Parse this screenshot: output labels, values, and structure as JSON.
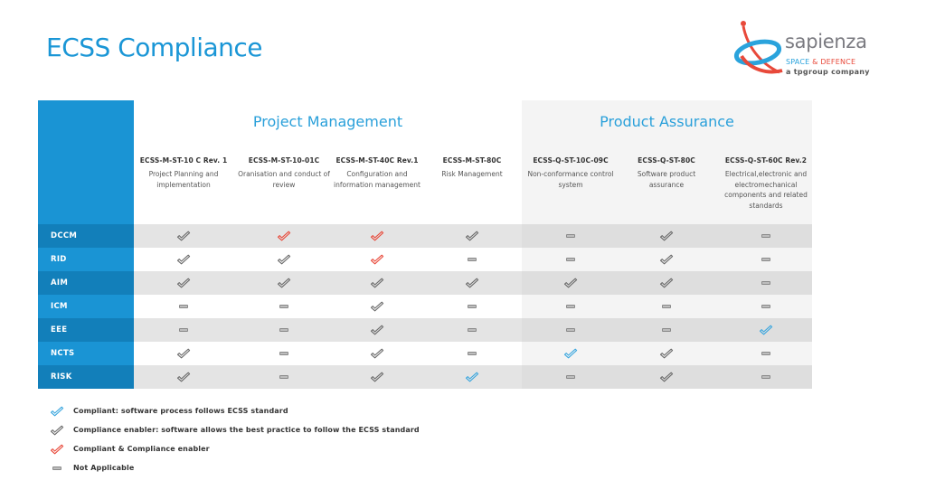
{
  "title": "ECSS Compliance",
  "logo": {
    "name": "sapienza",
    "sub_part1": "SPACE",
    "sub_amp": " & ",
    "sub_part2": "DEFENCE",
    "tagline": "a tpgroup company"
  },
  "colors": {
    "blue_check": "#3aa6de",
    "gray_check": "#6a6a6a",
    "red_check": "#e8493a",
    "title_blue": "#1a96d6"
  },
  "groups": [
    {
      "title": "Project Management"
    },
    {
      "title": "Product Assurance"
    }
  ],
  "columns": [
    {
      "code": "ECSS-M-ST-10 C Rev. 1",
      "desc": "Project Planning and implementation"
    },
    {
      "code": "ECSS-M-ST-10-01C",
      "desc": "Oranisation and conduct of review"
    },
    {
      "code": "ECSS-M-ST-40C Rev.1",
      "desc": "Configuration and information management"
    },
    {
      "code": "ECSS-M-ST-80C",
      "desc": "Risk Management"
    },
    {
      "code": "ECSS-Q-ST-10C-09C",
      "desc": "Non-conformance control system"
    },
    {
      "code": "ECSS-Q-ST-80C",
      "desc": "Software product assurance"
    },
    {
      "code": "ECSS-Q-ST-60C Rev.2",
      "desc": "Electrical,electronic and electromechanical components and related standards"
    }
  ],
  "rows": [
    {
      "label": "DCCM",
      "cells": [
        "enabler",
        "both",
        "both",
        "enabler",
        "na",
        "enabler",
        "na"
      ]
    },
    {
      "label": "RID",
      "cells": [
        "enabler",
        "enabler",
        "both",
        "na",
        "na",
        "enabler",
        "na"
      ]
    },
    {
      "label": "AIM",
      "cells": [
        "enabler",
        "enabler",
        "enabler",
        "enabler",
        "enabler",
        "enabler",
        "na"
      ]
    },
    {
      "label": "ICM",
      "cells": [
        "na",
        "na",
        "enabler",
        "na",
        "na",
        "na",
        "na"
      ]
    },
    {
      "label": "EEE",
      "cells": [
        "na",
        "na",
        "enabler",
        "na",
        "na",
        "na",
        "compliant"
      ]
    },
    {
      "label": "NCTS",
      "cells": [
        "enabler",
        "na",
        "enabler",
        "na",
        "compliant",
        "enabler",
        "na"
      ]
    },
    {
      "label": "RISK",
      "cells": [
        "enabler",
        "na",
        "enabler",
        "compliant",
        "na",
        "enabler",
        "na"
      ]
    }
  ],
  "legend": [
    {
      "type": "compliant",
      "icon": "check-icon-blue",
      "text": "Compliant: software process follows ECSS standard"
    },
    {
      "type": "enabler",
      "icon": "check-icon-gray",
      "text": "Compliance enabler: software allows the best practice to follow the ECSS standard"
    },
    {
      "type": "both",
      "icon": "check-icon-red",
      "text": "Compliant & Compliance enabler"
    },
    {
      "type": "na",
      "icon": "dash-icon",
      "text": "Not Applicable"
    }
  ]
}
